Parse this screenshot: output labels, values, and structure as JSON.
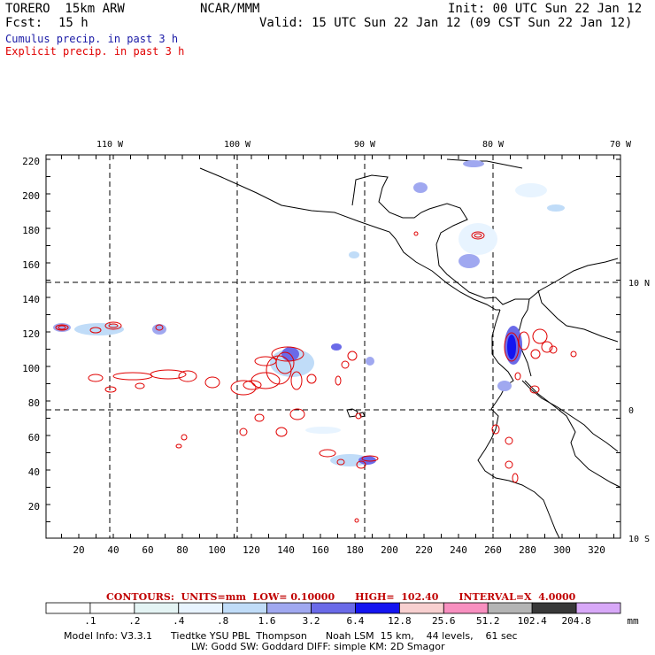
{
  "header": {
    "model": "TORERO  15km ARW",
    "org": "NCAR/MMM",
    "init": "Init: 00 UTC Sun 22 Jan 12",
    "fcst_label": "Fcst:",
    "fcst_value": "15 h",
    "valid": "Valid: 15 UTC Sun 22 Jan 12 (09 CST Sun 22 Jan 12)"
  },
  "legend": {
    "cumulus": "Cumulus precip. in past 3 h",
    "explicit": "Explicit precip. in past 3 h",
    "cumulus_color": "#1a1aa6",
    "explicit_color": "#e00000"
  },
  "map": {
    "lon_labels": [
      "110 W",
      "100 W",
      "90 W",
      "80 W",
      "70 W"
    ],
    "lat_labels": [
      "10 N",
      "0",
      "10 S"
    ],
    "y_ticks": [
      "220",
      "200",
      "180",
      "160",
      "140",
      "120",
      "100",
      "80",
      "60",
      "40",
      "20"
    ],
    "x_ticks": [
      "20",
      "40",
      "60",
      "80",
      "100",
      "120",
      "140",
      "160",
      "180",
      "200",
      "220",
      "240",
      "260",
      "280",
      "300",
      "320"
    ]
  },
  "contours": {
    "label": "CONTOURS:  UNITS=mm  LOW= 0.10000      HIGH=  102.40      INTERVAL=X  4.0000"
  },
  "colorbar": {
    "unit": "mm",
    "labels": [
      ".1",
      ".2",
      ".4",
      ".8",
      "1.6",
      "3.2",
      "6.4",
      "12.8",
      "25.6",
      "51.2",
      "102.4",
      "204.8"
    ],
    "colors": [
      "#ffffff",
      "#ffffff",
      "#e4f4f4",
      "#e8f4ff",
      "#c0dcf8",
      "#a0a8f0",
      "#6a6ae8",
      "#1414f0",
      "#f8d0d0",
      "#f890c0",
      "#b4b4b4",
      "#383838",
      "#d8a8f8"
    ]
  },
  "model_info": {
    "line1": "Model Info: V3.3.1      Tiedtke YSU PBL  Thompson      Noah LSM  15 km,    44 levels,    61 sec",
    "line2": "LW: Godd SW: Goddard DIFF: simple KM: 2D Smagor"
  }
}
